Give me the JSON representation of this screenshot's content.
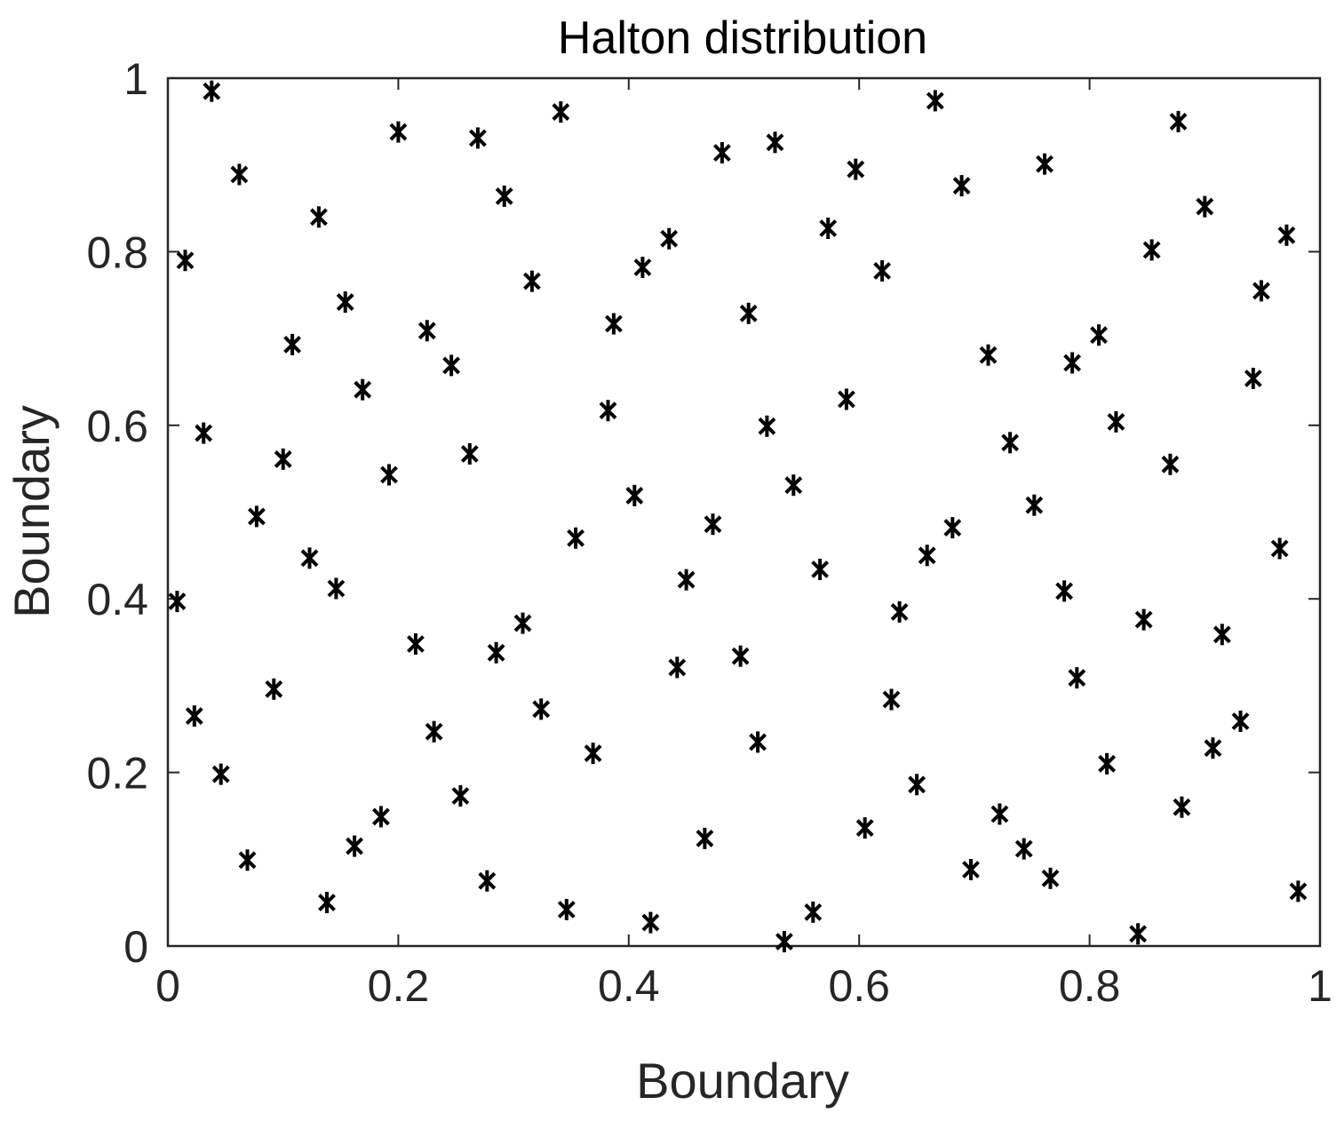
{
  "chart_data": {
    "type": "scatter",
    "title": "Halton distribution",
    "xlabel": "Boundary",
    "ylabel": "Boundary",
    "xlim": [
      0,
      1
    ],
    "ylim": [
      0,
      1
    ],
    "xticks": [
      "0",
      "0.2",
      "0.4",
      "0.6",
      "0.8",
      "1"
    ],
    "yticks": [
      "0",
      "0.2",
      "0.4",
      "0.6",
      "0.8",
      "1"
    ],
    "xtick_values": [
      0,
      0.2,
      0.4,
      0.6,
      0.8,
      1
    ],
    "ytick_values": [
      0,
      0.2,
      0.4,
      0.6,
      0.8,
      1
    ],
    "grid": false,
    "marker": "asterisk",
    "marker_color": "#000000",
    "series": [
      {
        "points": [
          [
            0.008,
            0.397
          ],
          [
            0.015,
            0.79
          ],
          [
            0.023,
            0.265
          ],
          [
            0.031,
            0.591
          ],
          [
            0.038,
            0.985
          ],
          [
            0.046,
            0.198
          ],
          [
            0.062,
            0.889
          ],
          [
            0.069,
            0.099
          ],
          [
            0.077,
            0.495
          ],
          [
            0.092,
            0.296
          ],
          [
            0.1,
            0.561
          ],
          [
            0.108,
            0.693
          ],
          [
            0.123,
            0.447
          ],
          [
            0.131,
            0.84
          ],
          [
            0.138,
            0.05
          ],
          [
            0.146,
            0.412
          ],
          [
            0.154,
            0.742
          ],
          [
            0.162,
            0.115
          ],
          [
            0.169,
            0.641
          ],
          [
            0.185,
            0.149
          ],
          [
            0.192,
            0.543
          ],
          [
            0.2,
            0.938
          ],
          [
            0.215,
            0.348
          ],
          [
            0.225,
            0.709
          ],
          [
            0.231,
            0.247
          ],
          [
            0.246,
            0.669
          ],
          [
            0.254,
            0.173
          ],
          [
            0.262,
            0.567
          ],
          [
            0.269,
            0.931
          ],
          [
            0.277,
            0.075
          ],
          [
            0.285,
            0.338
          ],
          [
            0.292,
            0.864
          ],
          [
            0.308,
            0.372
          ],
          [
            0.316,
            0.766
          ],
          [
            0.324,
            0.273
          ],
          [
            0.341,
            0.961
          ],
          [
            0.346,
            0.042
          ],
          [
            0.354,
            0.47
          ],
          [
            0.369,
            0.222
          ],
          [
            0.382,
            0.617
          ],
          [
            0.387,
            0.717
          ],
          [
            0.405,
            0.519
          ],
          [
            0.412,
            0.782
          ],
          [
            0.419,
            0.027
          ],
          [
            0.435,
            0.815
          ],
          [
            0.442,
            0.321
          ],
          [
            0.45,
            0.422
          ],
          [
            0.466,
            0.124
          ],
          [
            0.473,
            0.486
          ],
          [
            0.481,
            0.914
          ],
          [
            0.497,
            0.334
          ],
          [
            0.504,
            0.729
          ],
          [
            0.512,
            0.235
          ],
          [
            0.52,
            0.599
          ],
          [
            0.527,
            0.926
          ],
          [
            0.535,
            0.005
          ],
          [
            0.543,
            0.531
          ],
          [
            0.56,
            0.039
          ],
          [
            0.566,
            0.434
          ],
          [
            0.573,
            0.827
          ],
          [
            0.589,
            0.63
          ],
          [
            0.597,
            0.895
          ],
          [
            0.605,
            0.136
          ],
          [
            0.62,
            0.778
          ],
          [
            0.628,
            0.284
          ],
          [
            0.635,
            0.385
          ],
          [
            0.65,
            0.186
          ],
          [
            0.659,
            0.45
          ],
          [
            0.666,
            0.974
          ],
          [
            0.681,
            0.482
          ],
          [
            0.689,
            0.876
          ],
          [
            0.697,
            0.088
          ],
          [
            0.712,
            0.681
          ],
          [
            0.722,
            0.152
          ],
          [
            0.731,
            0.58
          ],
          [
            0.743,
            0.112
          ],
          [
            0.752,
            0.508
          ],
          [
            0.761,
            0.901
          ],
          [
            0.766,
            0.078
          ],
          [
            0.778,
            0.409
          ],
          [
            0.785,
            0.672
          ],
          [
            0.789,
            0.309
          ],
          [
            0.808,
            0.704
          ],
          [
            0.815,
            0.21
          ],
          [
            0.823,
            0.604
          ],
          [
            0.842,
            0.014
          ],
          [
            0.847,
            0.376
          ],
          [
            0.854,
            0.802
          ],
          [
            0.87,
            0.555
          ],
          [
            0.88,
            0.16
          ],
          [
            0.877,
            0.95
          ],
          [
            0.9,
            0.852
          ],
          [
            0.907,
            0.228
          ],
          [
            0.915,
            0.359
          ],
          [
            0.931,
            0.259
          ],
          [
            0.942,
            0.654
          ],
          [
            0.949,
            0.755
          ],
          [
            0.965,
            0.458
          ],
          [
            0.971,
            0.819
          ],
          [
            0.981,
            0.063
          ]
        ]
      }
    ]
  }
}
